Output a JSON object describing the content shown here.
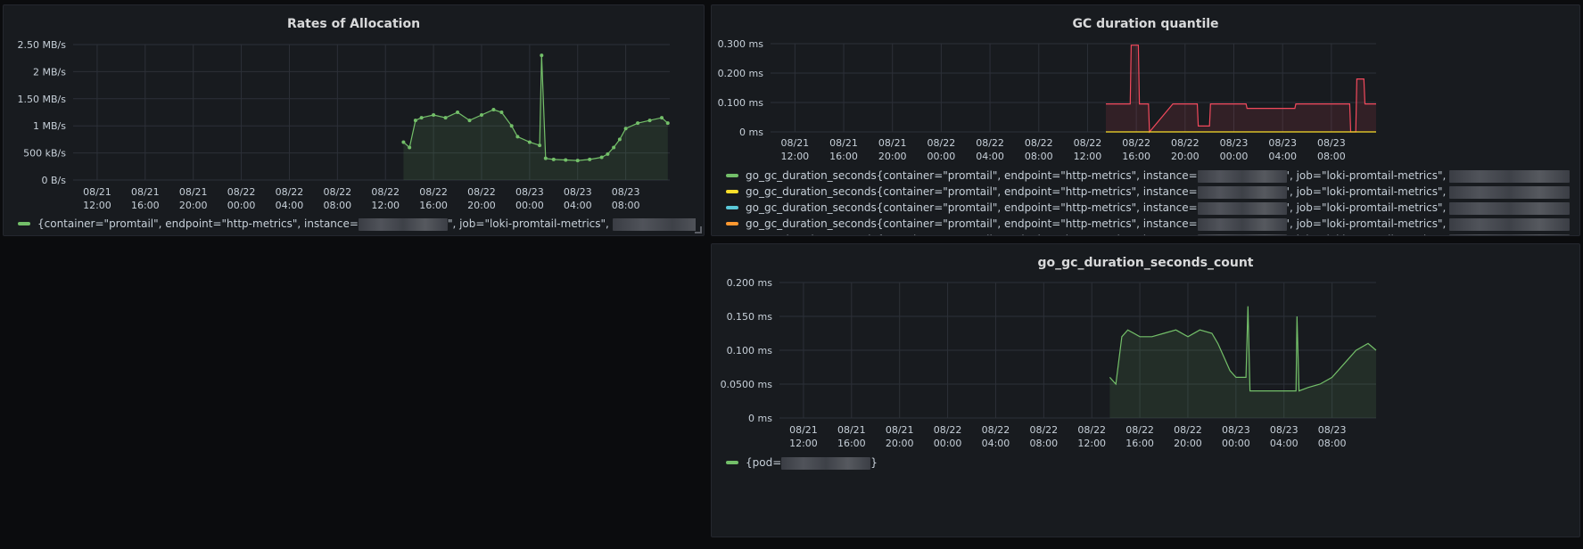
{
  "colors": {
    "green": "#73bf69",
    "yellow": "#fade2a",
    "cyan": "#5ac8d8",
    "orange": "#ff9830",
    "red": "#f2495c",
    "grid": "#2c3038",
    "text": "#c7d0d9"
  },
  "x_ticks": [
    {
      "date": "08/21",
      "time": "12:00"
    },
    {
      "date": "08/21",
      "time": "16:00"
    },
    {
      "date": "08/21",
      "time": "20:00"
    },
    {
      "date": "08/22",
      "time": "00:00"
    },
    {
      "date": "08/22",
      "time": "04:00"
    },
    {
      "date": "08/22",
      "time": "08:00"
    },
    {
      "date": "08/22",
      "time": "12:00"
    },
    {
      "date": "08/22",
      "time": "16:00"
    },
    {
      "date": "08/22",
      "time": "20:00"
    },
    {
      "date": "08/23",
      "time": "00:00"
    },
    {
      "date": "08/23",
      "time": "04:00"
    },
    {
      "date": "08/23",
      "time": "08:00"
    }
  ],
  "chart_data": [
    {
      "type": "line",
      "title": "Rates of Allocation",
      "xlim": [
        "08/21 10:00",
        "08/23 11:40"
      ],
      "y_ticks": [
        "0 B/s",
        "500 kB/s",
        "1 MB/s",
        "1.50 MB/s",
        "2 MB/s",
        "2.50 MB/s"
      ],
      "ylim": [
        0,
        2500
      ],
      "y_unit": "kB/s",
      "points_shown": true,
      "fill": true,
      "series": [
        {
          "color": "#73bf69",
          "x": [
            "08/22 13:30",
            "08/22 14:00",
            "08/22 14:30",
            "08/22 15:00",
            "08/22 16:00",
            "08/22 17:00",
            "08/22 18:00",
            "08/22 19:00",
            "08/22 20:00",
            "08/22 21:00",
            "08/22 21:40",
            "08/22 22:30",
            "08/22 23:00",
            "08/23 00:00",
            "08/23 00:50",
            "08/23 01:00",
            "08/23 01:20",
            "08/23 02:00",
            "08/23 03:00",
            "08/23 04:00",
            "08/23 05:00",
            "08/23 06:00",
            "08/23 06:30",
            "08/23 07:00",
            "08/23 07:30",
            "08/23 08:00",
            "08/23 09:00",
            "08/23 10:00",
            "08/23 11:00",
            "08/23 11:30"
          ],
          "values": [
            700,
            600,
            1100,
            1150,
            1200,
            1150,
            1250,
            1100,
            1200,
            1300,
            1250,
            1000,
            800,
            700,
            640,
            2300,
            400,
            380,
            370,
            360,
            380,
            420,
            480,
            600,
            750,
            950,
            1050,
            1100,
            1150,
            1050
          ]
        }
      ],
      "legend": [
        {
          "color": "#73bf69",
          "text_a": "{container=\"promtail\", endpoint=\"http-metrics\", instance=",
          "text_b": "\", job=\"loki-promtail-metrics\", ",
          "text_c": ", pod="
        }
      ]
    },
    {
      "type": "line",
      "title": "GC duration quantile",
      "xlim": [
        "08/21 10:00",
        "08/23 11:40"
      ],
      "y_ticks": [
        "0 ms",
        "0.100 ms",
        "0.200 ms",
        "0.300 ms"
      ],
      "ylim": [
        0,
        0.3
      ],
      "y_unit": "ms",
      "fill": true,
      "series": [
        {
          "color": "#f2495c",
          "x": [
            "08/22 13:30",
            "08/22 15:30",
            "08/22 15:35",
            "08/22 16:10",
            "08/22 16:15",
            "08/22 17:00",
            "08/22 17:05",
            "08/22 19:00",
            "08/22 19:05",
            "08/22 21:00",
            "08/22 21:05",
            "08/22 22:00",
            "08/22 22:05",
            "08/23 01:00",
            "08/23 01:05",
            "08/23 05:00",
            "08/23 05:05",
            "08/23 09:30",
            "08/23 09:35",
            "08/23 10:00",
            "08/23 10:05",
            "08/23 10:40",
            "08/23 10:45",
            "08/23 11:40"
          ],
          "values": [
            0.095,
            0.095,
            0.295,
            0.295,
            0.095,
            0.095,
            0.0,
            0.095,
            0.095,
            0.095,
            0.02,
            0.02,
            0.095,
            0.095,
            0.08,
            0.08,
            0.095,
            0.095,
            0.0,
            0.0,
            0.18,
            0.18,
            0.095,
            0.095
          ]
        },
        {
          "color": "#fade2a",
          "x": [
            "08/22 13:30",
            "08/23 11:40"
          ],
          "values": [
            0.0,
            0.0
          ]
        }
      ],
      "legend": [
        {
          "color": "#73bf69",
          "text_a": "go_gc_duration_seconds{container=\"promtail\", endpoint=\"http-metrics\", instance=",
          "text_b": "', job=\"loki-promtail-metrics\", "
        },
        {
          "color": "#fade2a",
          "text_a": "go_gc_duration_seconds{container=\"promtail\", endpoint=\"http-metrics\", instance=",
          "text_b": "', job=\"loki-promtail-metrics\", "
        },
        {
          "color": "#5ac8d8",
          "text_a": "go_gc_duration_seconds{container=\"promtail\", endpoint=\"http-metrics\", instance=",
          "text_b": "', job=\"loki-promtail-metrics\", "
        },
        {
          "color": "#ff9830",
          "text_a": "go_gc_duration_seconds{container=\"promtail\", endpoint=\"http-metrics\", instance=",
          "text_b": "', job=\"loki-promtail-metrics\", "
        },
        {
          "color": "#f2495c",
          "text_a": "go_gc_duration_seconds{container=\"promtail\", endpoint=\"http-metrics\", instance=",
          "text_b": "', job=\"loki-promtail-metrics\", "
        }
      ]
    },
    {
      "type": "line",
      "title": "go_gc_duration_seconds_count",
      "xlim": [
        "08/21 10:00",
        "08/23 11:40"
      ],
      "y_ticks": [
        "0 ms",
        "0.0500 ms",
        "0.100 ms",
        "0.150 ms",
        "0.200 ms"
      ],
      "ylim": [
        0,
        0.2
      ],
      "y_unit": "ms",
      "fill": true,
      "series": [
        {
          "color": "#73bf69",
          "x": [
            "08/22 13:30",
            "08/22 14:00",
            "08/22 14:30",
            "08/22 15:00",
            "08/22 16:00",
            "08/22 17:00",
            "08/22 18:00",
            "08/22 19:00",
            "08/22 20:00",
            "08/22 21:00",
            "08/22 22:00",
            "08/22 22:30",
            "08/22 23:00",
            "08/22 23:30",
            "08/23 00:00",
            "08/23 00:50",
            "08/23 01:00",
            "08/23 01:10",
            "08/23 02:00",
            "08/23 03:00",
            "08/23 04:00",
            "08/23 05:00",
            "08/23 05:05",
            "08/23 05:15",
            "08/23 06:00",
            "08/23 07:00",
            "08/23 08:00",
            "08/23 09:00",
            "08/23 10:00",
            "08/23 11:00",
            "08/23 11:40"
          ],
          "values": [
            0.06,
            0.05,
            0.12,
            0.13,
            0.12,
            0.12,
            0.125,
            0.13,
            0.12,
            0.13,
            0.125,
            0.11,
            0.09,
            0.07,
            0.06,
            0.06,
            0.165,
            0.04,
            0.04,
            0.04,
            0.04,
            0.04,
            0.15,
            0.04,
            0.045,
            0.05,
            0.06,
            0.08,
            0.1,
            0.11,
            0.1
          ]
        }
      ],
      "legend": [
        {
          "color": "#73bf69",
          "text_a": "{pod=",
          "text_b": "}"
        }
      ]
    }
  ]
}
